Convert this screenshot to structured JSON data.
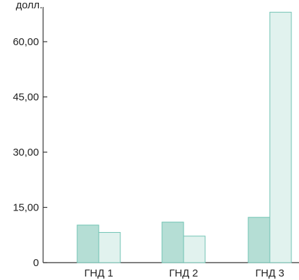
{
  "chart_data": {
    "type": "bar",
    "ylabel": "долл.",
    "categories": [
      "ГНД 1",
      "ГНД 2",
      "ГНД 3"
    ],
    "series": [
      {
        "values": [
          10.2,
          11.0,
          12.3
        ]
      },
      {
        "values": [
          8.2,
          7.2,
          68.0
        ]
      }
    ],
    "ylim": [
      0,
      70
    ],
    "yticks": [
      0,
      15,
      30,
      45,
      60
    ],
    "ytick_labels": [
      "0",
      "15,00",
      "30,00",
      "45,00",
      "60,00"
    ],
    "grid": false,
    "colors": {
      "series_fill": [
        "#b5ded5",
        "#e1f2ee"
      ],
      "series_stroke": [
        "#6fc3b3",
        "#6fc3b3"
      ],
      "axis": "#333333"
    }
  }
}
